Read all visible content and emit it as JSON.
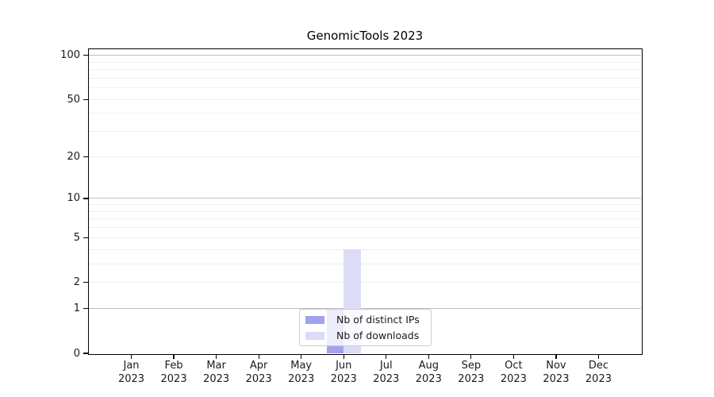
{
  "title": "GenomicTools 2023",
  "chart_data": {
    "type": "bar",
    "title": "GenomicTools 2023",
    "x_categories": [
      "Jan",
      "Feb",
      "Mar",
      "Apr",
      "May",
      "Jun",
      "Jul",
      "Aug",
      "Sep",
      "Oct",
      "Nov",
      "Dec"
    ],
    "x_year_label": "2023",
    "series": [
      {
        "name": "Nb of distinct IPs",
        "color": "#a2a2ec",
        "values": [
          0,
          0,
          0,
          0,
          0,
          1,
          0,
          0,
          0,
          0,
          0,
          0
        ]
      },
      {
        "name": "Nb of downloads",
        "color": "#dcdcf7",
        "values": [
          0,
          0,
          0,
          0,
          0,
          4,
          0,
          0,
          0,
          0,
          0,
          0
        ]
      }
    ],
    "y_axis": {
      "scale": "log1p",
      "tick_values": [
        0,
        1,
        2,
        5,
        10,
        20,
        50,
        100
      ],
      "tick_labels": [
        "0",
        "1",
        "2",
        "5",
        "10",
        "20",
        "50",
        "100"
      ],
      "major_gridlines": [
        1,
        10,
        100
      ],
      "minor_gridlines": [
        2,
        3,
        4,
        5,
        6,
        7,
        8,
        9,
        20,
        30,
        40,
        50,
        60,
        70,
        80,
        90
      ],
      "ylim": [
        0,
        110
      ]
    },
    "legend": {
      "position": "lower center",
      "entries": [
        "Nb of distinct IPs",
        "Nb of downloads"
      ]
    }
  },
  "colors": {
    "background": "#ffffff",
    "frame": "#000000",
    "major_grid": "#bdbdbd",
    "minor_grid": "#f0f0f0",
    "text": "#1a1a1a",
    "bar_distinct_ips": "#a2a2ec",
    "bar_downloads": "#dcdcf7",
    "legend_border": "#cccccc"
  }
}
